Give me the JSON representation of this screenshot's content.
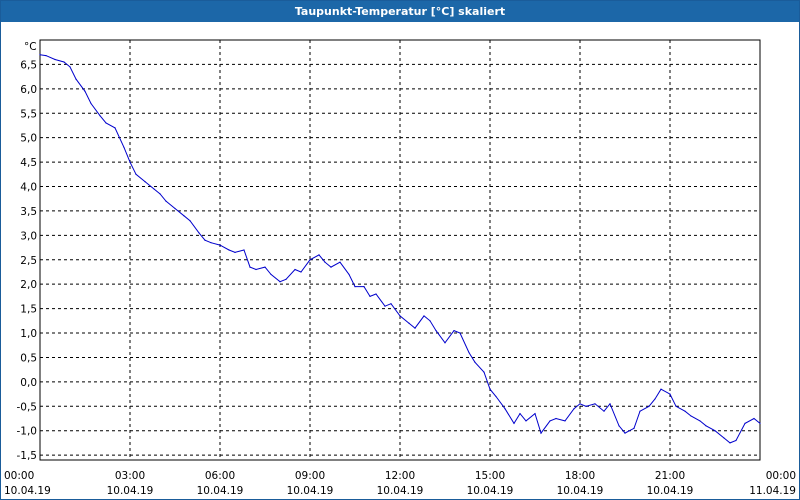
{
  "window": {
    "title": "Taupunkt-Temperatur [°C] skaliert"
  },
  "colors": {
    "title_bar": "#1c67a8",
    "line": "#0000cc",
    "grid": "#000000"
  },
  "chart_data": {
    "type": "line",
    "title": "Taupunkt-Temperatur [°C] skaliert",
    "ylabel": "°C",
    "xlabel": "",
    "grid": true,
    "ylim": [
      -1.6,
      7.0
    ],
    "xlim_hours": [
      0,
      24
    ],
    "y_ticks": [
      {
        "value": 6.5,
        "label": "6,5"
      },
      {
        "value": 6.0,
        "label": "6,0"
      },
      {
        "value": 5.5,
        "label": "5,5"
      },
      {
        "value": 5.0,
        "label": "5,0"
      },
      {
        "value": 4.5,
        "label": "4,5"
      },
      {
        "value": 4.0,
        "label": "4,0"
      },
      {
        "value": 3.5,
        "label": "3,5"
      },
      {
        "value": 3.0,
        "label": "3,0"
      },
      {
        "value": 2.5,
        "label": "2,5"
      },
      {
        "value": 2.0,
        "label": "2,0"
      },
      {
        "value": 1.5,
        "label": "1,5"
      },
      {
        "value": 1.0,
        "label": "1,0"
      },
      {
        "value": 0.5,
        "label": "0,5"
      },
      {
        "value": 0.0,
        "label": "0,0"
      },
      {
        "value": -0.5,
        "label": "-0,5"
      },
      {
        "value": -1.0,
        "label": "-1,0"
      },
      {
        "value": -1.5,
        "label": "-1,5"
      }
    ],
    "x_ticks": [
      {
        "hour": 0,
        "time": "00:00",
        "date": "10.04.19"
      },
      {
        "hour": 3,
        "time": "03:00",
        "date": "10.04.19"
      },
      {
        "hour": 6,
        "time": "06:00",
        "date": "10.04.19"
      },
      {
        "hour": 9,
        "time": "09:00",
        "date": "10.04.19"
      },
      {
        "hour": 12,
        "time": "12:00",
        "date": "10.04.19"
      },
      {
        "hour": 15,
        "time": "15:00",
        "date": "10.04.19"
      },
      {
        "hour": 18,
        "time": "18:00",
        "date": "10.04.19"
      },
      {
        "hour": 21,
        "time": "21:00",
        "date": "10.04.19"
      },
      {
        "hour": 24,
        "time": "00:00",
        "date": "11.04.19"
      }
    ],
    "series": [
      {
        "x": [
          0.0,
          0.2,
          0.5,
          0.8,
          1.0,
          1.2,
          1.5,
          1.7,
          2.0,
          2.2,
          2.5,
          2.8,
          3.0,
          3.2,
          3.5,
          3.8,
          4.0,
          4.2,
          4.5,
          4.8,
          5.0,
          5.3,
          5.5,
          5.7,
          6.0,
          6.3,
          6.5,
          6.8,
          7.0,
          7.2,
          7.5,
          7.7,
          8.0,
          8.2,
          8.5,
          8.7,
          9.0,
          9.3,
          9.5,
          9.7,
          10.0,
          10.3,
          10.5,
          10.8,
          11.0,
          11.2,
          11.5,
          11.7,
          12.0,
          12.3,
          12.5,
          12.8,
          13.0,
          13.2,
          13.5,
          13.8,
          14.0,
          14.3,
          14.5,
          14.8,
          15.0,
          15.2,
          15.5,
          15.8,
          16.0,
          16.2,
          16.5,
          16.7,
          17.0,
          17.2,
          17.5,
          17.8,
          18.0,
          18.2,
          18.5,
          18.8,
          19.0,
          19.3,
          19.5,
          19.8,
          20.0,
          20.3,
          20.5,
          20.7,
          21.0,
          21.2,
          21.5,
          21.7,
          22.0,
          22.2,
          22.5,
          22.8,
          23.0,
          23.2,
          23.5,
          23.8,
          24.0
        ],
        "y": [
          6.7,
          6.68,
          6.6,
          6.55,
          6.45,
          6.2,
          5.95,
          5.7,
          5.45,
          5.3,
          5.2,
          4.8,
          4.5,
          4.25,
          4.1,
          3.95,
          3.85,
          3.7,
          3.55,
          3.4,
          3.3,
          3.05,
          2.9,
          2.85,
          2.8,
          2.7,
          2.65,
          2.7,
          2.35,
          2.3,
          2.35,
          2.2,
          2.05,
          2.1,
          2.3,
          2.25,
          2.5,
          2.6,
          2.45,
          2.35,
          2.45,
          2.2,
          1.95,
          1.95,
          1.75,
          1.8,
          1.55,
          1.6,
          1.35,
          1.2,
          1.1,
          1.35,
          1.25,
          1.05,
          0.8,
          1.05,
          1.0,
          0.6,
          0.4,
          0.2,
          -0.15,
          -0.3,
          -0.55,
          -0.85,
          -0.65,
          -0.8,
          -0.65,
          -1.05,
          -0.8,
          -0.75,
          -0.8,
          -0.55,
          -0.45,
          -0.5,
          -0.45,
          -0.6,
          -0.45,
          -0.9,
          -1.05,
          -0.95,
          -0.6,
          -0.5,
          -0.35,
          -0.15,
          -0.25,
          -0.5,
          -0.6,
          -0.7,
          -0.8,
          -0.9,
          -1.0,
          -1.15,
          -1.25,
          -1.2,
          -0.85,
          -0.75,
          -0.85
        ]
      }
    ]
  }
}
